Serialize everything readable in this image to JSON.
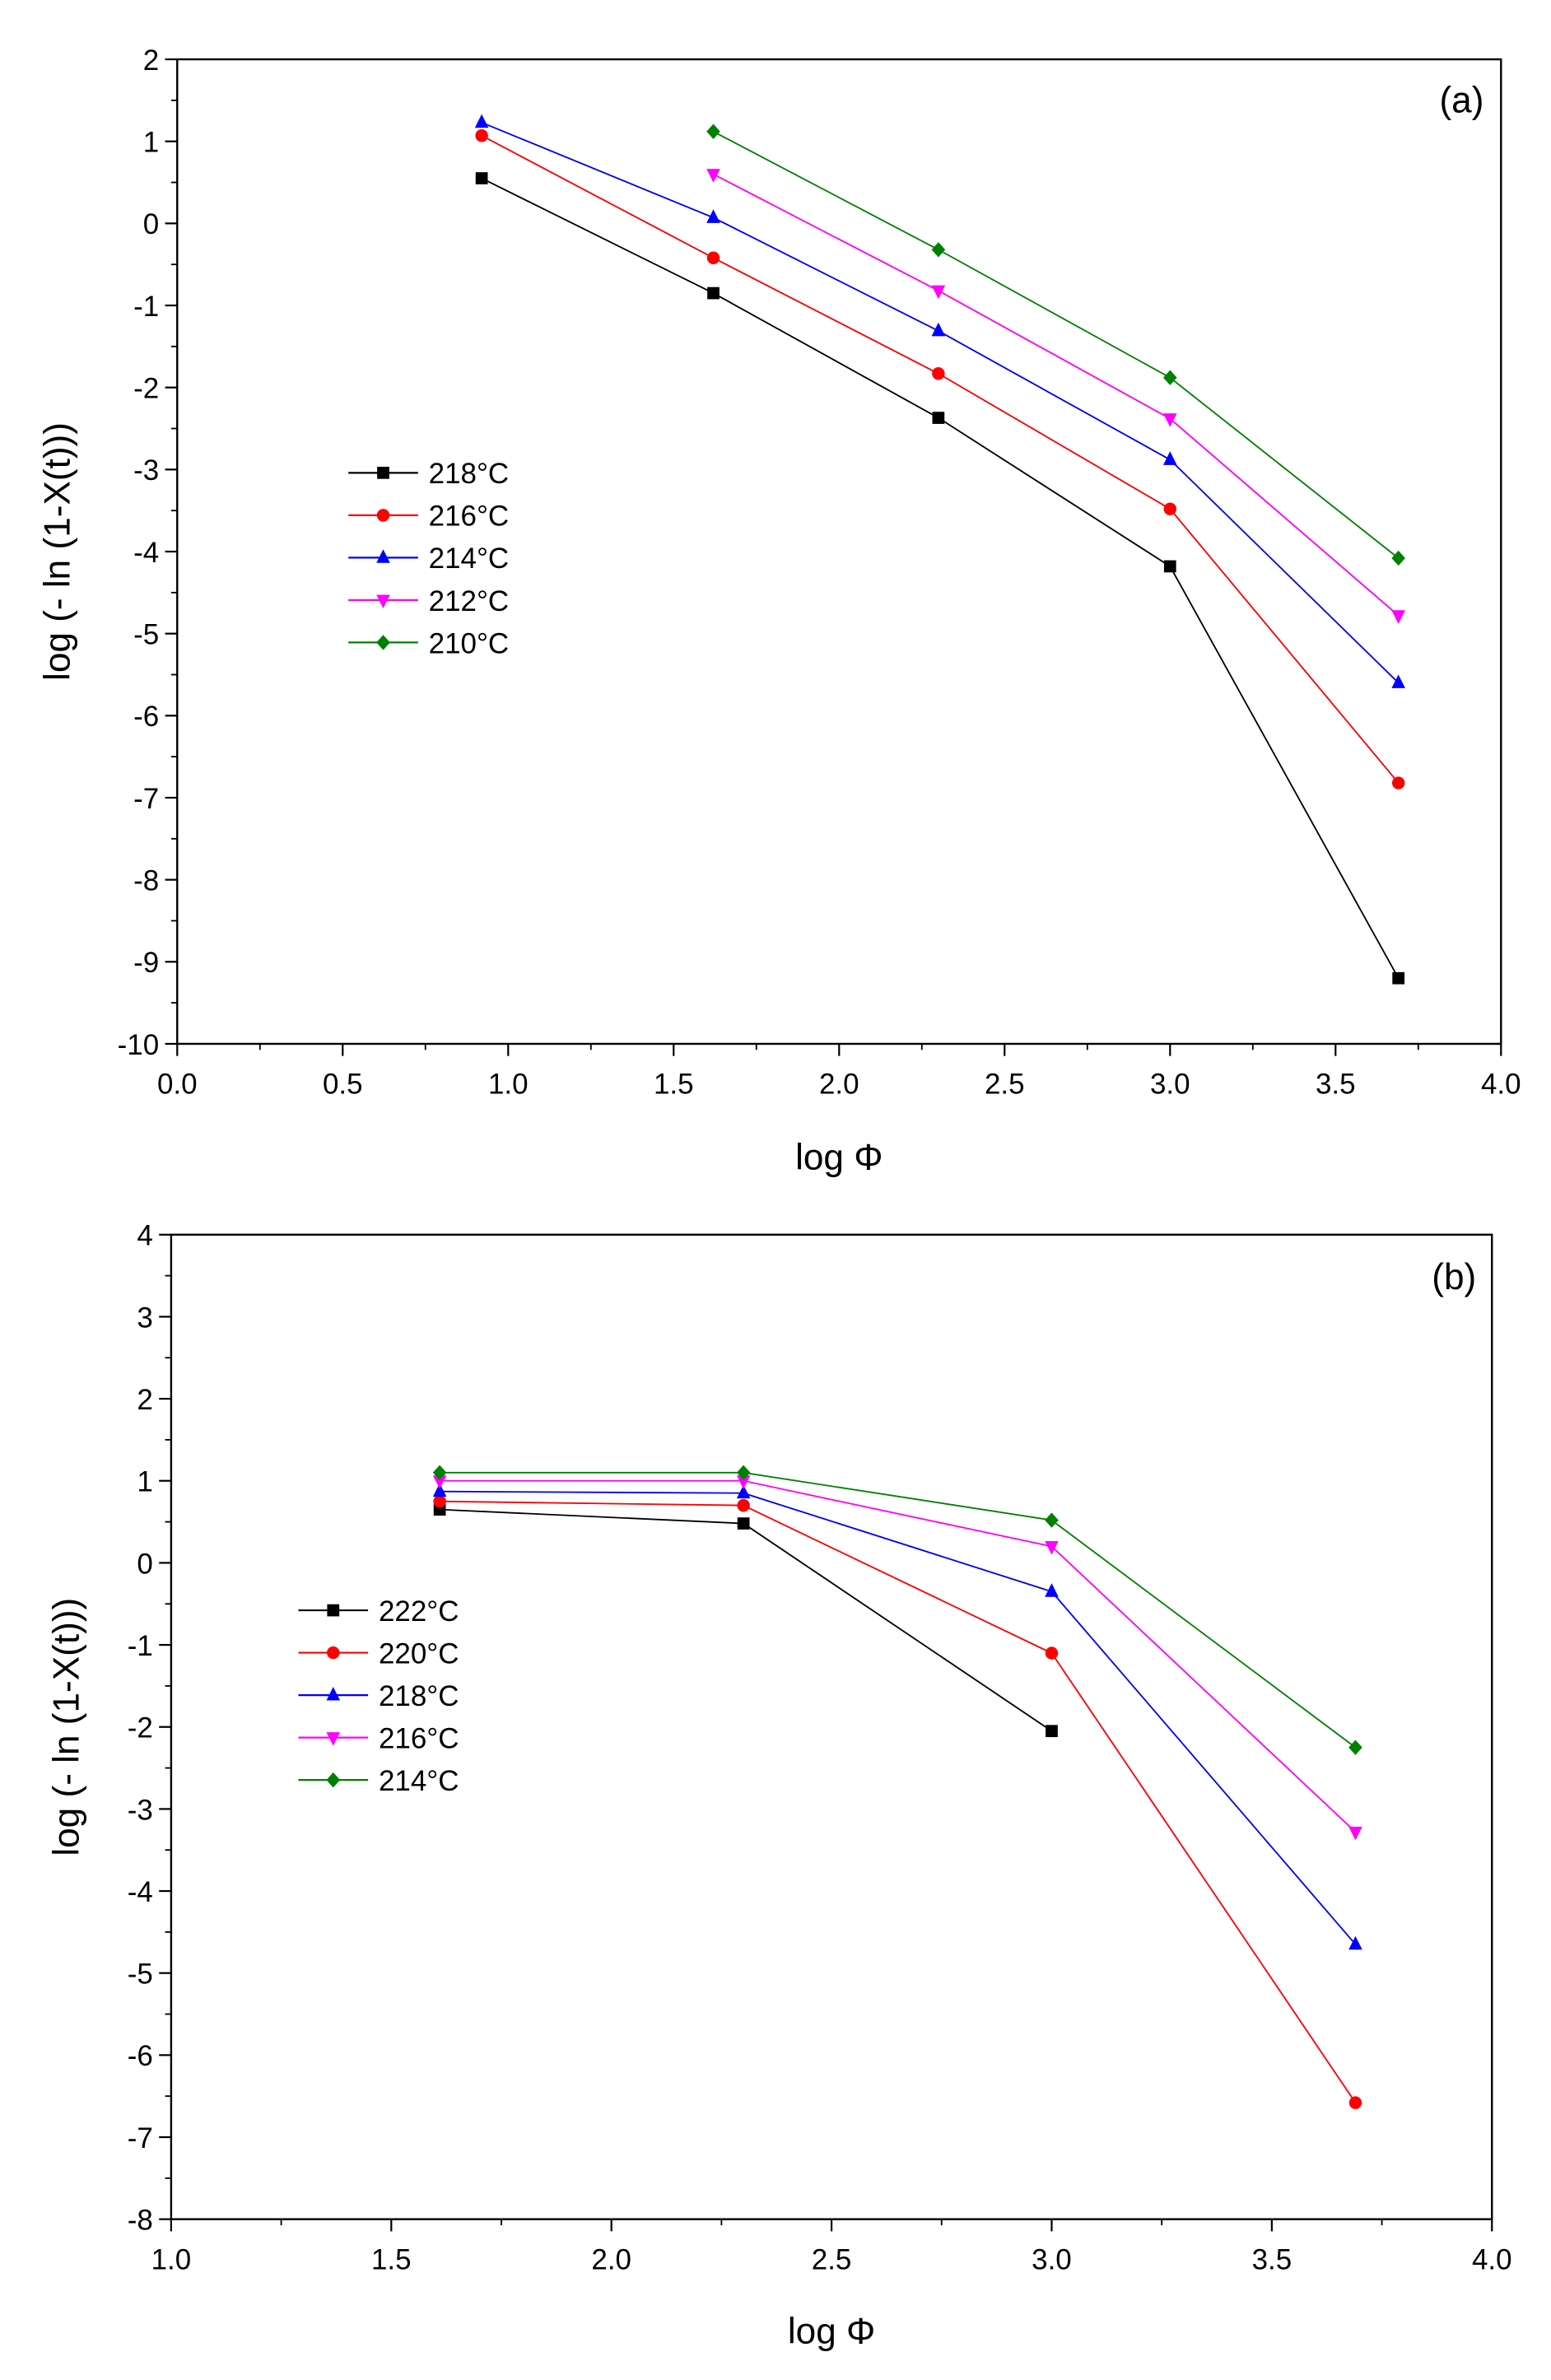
{
  "chart_data": [
    {
      "type": "line",
      "panel_label": "(a)",
      "xlabel": "log Φ",
      "ylabel": "log (- ln (1-X(t)))",
      "xlim": [
        0.0,
        4.0
      ],
      "ylim": [
        -10,
        2
      ],
      "xticks": [
        "0.0",
        "0.5",
        "1.0",
        "1.5",
        "2.0",
        "2.5",
        "3.0",
        "3.5",
        "4.0"
      ],
      "yticks": [
        "2",
        "1",
        "0",
        "-1",
        "-2",
        "-3",
        "-4",
        "-5",
        "-6",
        "-7",
        "-8",
        "-9",
        "-10"
      ],
      "legend_position": "center-left",
      "series": [
        {
          "name": "218°C",
          "color": "#000000",
          "marker": "square",
          "x": [
            0.92,
            1.62,
            2.3,
            3.0,
            3.69
          ],
          "y": [
            0.55,
            -0.85,
            -2.37,
            -4.18,
            -9.2
          ]
        },
        {
          "name": "216°C",
          "color": "#ff0000",
          "marker": "circle",
          "x": [
            0.92,
            1.62,
            2.3,
            3.0,
            3.69
          ],
          "y": [
            1.07,
            -0.42,
            -1.83,
            -3.48,
            -6.82
          ]
        },
        {
          "name": "214°C",
          "color": "#0000ff",
          "marker": "triangle-up",
          "x": [
            0.92,
            1.62,
            2.3,
            3.0,
            3.69
          ],
          "y": [
            1.23,
            0.07,
            -1.31,
            -2.88,
            -5.6
          ]
        },
        {
          "name": "212°C",
          "color": "#ff00ff",
          "marker": "triangle-down",
          "x": [
            1.62,
            2.3,
            3.0,
            3.69
          ],
          "y": [
            0.6,
            -0.82,
            -2.38,
            -4.78
          ]
        },
        {
          "name": "210°C",
          "color": "#008000",
          "marker": "diamond",
          "x": [
            1.62,
            2.3,
            3.0,
            3.69
          ],
          "y": [
            1.12,
            -0.32,
            -1.88,
            -4.08
          ]
        }
      ]
    },
    {
      "type": "line",
      "panel_label": "(b)",
      "xlabel": "log Φ",
      "ylabel": "log (- ln (1-X(t)))",
      "xlim": [
        1.0,
        4.0
      ],
      "ylim": [
        -8,
        4
      ],
      "xticks": [
        "1.0",
        "1.5",
        "2.0",
        "2.5",
        "3.0",
        "3.5",
        "4.0"
      ],
      "yticks": [
        "4",
        "3",
        "2",
        "1",
        "0",
        "-1",
        "-2",
        "-3",
        "-4",
        "-5",
        "-6",
        "-7",
        "-8"
      ],
      "legend_position": "center-left",
      "series": [
        {
          "name": "222°C",
          "color": "#000000",
          "marker": "square",
          "x": [
            1.61,
            2.3,
            3.0
          ],
          "y": [
            0.65,
            0.48,
            -2.05
          ]
        },
        {
          "name": "220°C",
          "color": "#ff0000",
          "marker": "circle",
          "x": [
            1.61,
            2.3,
            3.0,
            3.69
          ],
          "y": [
            0.75,
            0.7,
            -1.1,
            -6.58
          ]
        },
        {
          "name": "218°C",
          "color": "#0000ff",
          "marker": "triangle-up",
          "x": [
            1.61,
            2.3,
            3.0,
            3.69
          ],
          "y": [
            0.87,
            0.85,
            -0.35,
            -4.65
          ]
        },
        {
          "name": "216°C",
          "color": "#ff00ff",
          "marker": "triangle-down",
          "x": [
            1.61,
            2.3,
            3.0,
            3.69
          ],
          "y": [
            1.0,
            1.0,
            0.2,
            -3.28
          ]
        },
        {
          "name": "214°C",
          "color": "#008000",
          "marker": "diamond",
          "x": [
            1.61,
            2.3,
            3.0,
            3.69
          ],
          "y": [
            1.1,
            1.1,
            0.52,
            -2.25
          ]
        }
      ]
    }
  ]
}
